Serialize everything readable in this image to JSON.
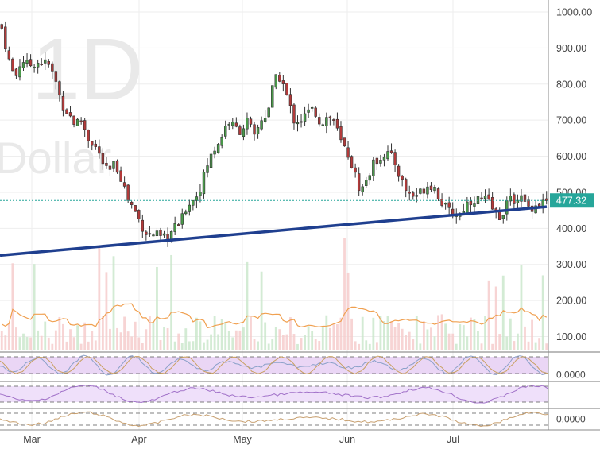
{
  "chart_data": {
    "type": "candlestick",
    "interval_watermark": "1D",
    "currency_watermark": "Dollar",
    "last_price_label": "477.32",
    "last_price": 477.32,
    "y_ticks": [
      "1000.00",
      "900.00",
      "800.00",
      "700.00",
      "600.00",
      "500.00",
      "400.00",
      "300.00",
      "200.00",
      "100.00"
    ],
    "y_tick_values": [
      1000,
      900,
      800,
      700,
      600,
      500,
      400,
      300,
      200,
      100
    ],
    "ylim": [
      55,
      1045
    ],
    "x_ticks": [
      "Mar",
      "Apr",
      "May",
      "Jun",
      "Jul"
    ],
    "indicator_ticks": [
      "0.0000",
      "0.0000"
    ],
    "trendline": {
      "from": 325,
      "to": 460
    },
    "close_path": [
      955,
      870,
      815,
      870,
      850,
      860,
      860,
      855,
      815,
      745,
      720,
      690,
      700,
      650,
      630,
      590,
      550,
      580,
      540,
      480,
      450,
      410,
      380,
      385,
      370,
      375,
      400,
      420,
      470,
      480,
      520,
      580,
      620,
      650,
      700,
      680,
      670,
      700,
      650,
      700,
      720,
      810,
      820,
      760,
      700,
      700,
      720,
      730,
      690,
      710,
      700,
      640,
      610,
      560,
      500,
      540,
      580,
      600,
      610,
      590,
      540,
      500,
      490,
      500,
      520,
      520,
      480,
      450,
      440,
      440,
      470,
      480,
      480,
      480,
      450,
      430,
      470,
      480,
      490,
      460,
      460,
      470,
      477
    ]
  }
}
